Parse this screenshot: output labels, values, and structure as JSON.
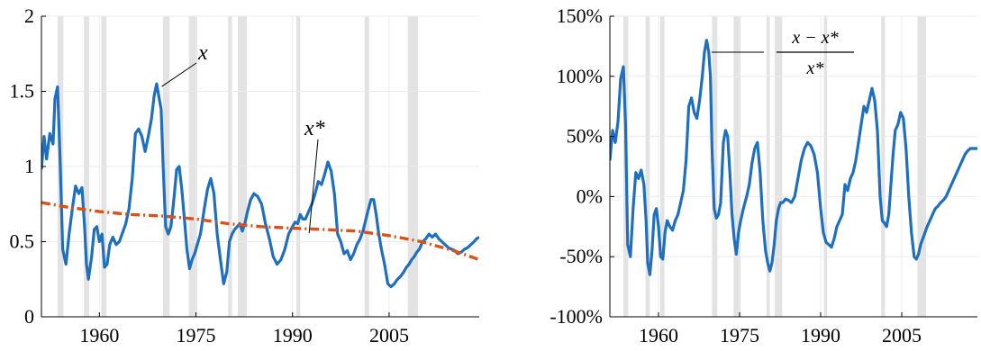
{
  "colors": {
    "x_line": "#1f6fbf",
    "xstar_line": "#d95319",
    "gap_line": "#1f6fbf",
    "recession": "#e3e3e3",
    "grid": "#ebebeb",
    "axis": "#000000"
  },
  "chart_data": [
    {
      "type": "line",
      "title": "",
      "xlabel": "",
      "ylabel": "",
      "xlim": [
        1951,
        2019
      ],
      "ylim": [
        0,
        2
      ],
      "xticks": [
        1960,
        1975,
        1990,
        2005
      ],
      "xtick_labels": [
        "1960",
        "1975",
        "1990",
        "2005"
      ],
      "yticks": [
        0,
        0.5,
        1,
        1.5,
        2
      ],
      "ytick_labels": [
        "0",
        "0.5",
        "1",
        "1.5",
        "2"
      ],
      "grid": true,
      "recession_bands": [
        [
          1953.5,
          1954.4
        ],
        [
          1957.6,
          1958.4
        ],
        [
          1960.3,
          1961.1
        ],
        [
          1969.9,
          1970.9
        ],
        [
          1973.9,
          1975.2
        ],
        [
          1980.0,
          1980.6
        ],
        [
          1981.5,
          1982.9
        ],
        [
          1990.6,
          1991.2
        ],
        [
          2001.2,
          2001.9
        ],
        [
          2007.9,
          2009.5
        ]
      ],
      "series": [
        {
          "name": "",
          "style": "solid",
          "x": [
            1951.0,
            1951.4,
            1951.8,
            1952.3,
            1952.8,
            1953.1,
            1953.5,
            1953.9,
            1954.3,
            1954.8,
            1955.3,
            1955.8,
            1956.3,
            1956.8,
            1957.3,
            1957.7,
            1958.0,
            1958.3,
            1958.8,
            1959.2,
            1959.6,
            1960.0,
            1960.4,
            1960.8,
            1961.2,
            1961.6,
            1962.1,
            1962.6,
            1963.1,
            1963.6,
            1964.1,
            1964.6,
            1965.1,
            1965.6,
            1966.1,
            1966.6,
            1967.1,
            1967.6,
            1968.1,
            1968.5,
            1968.9,
            1969.3,
            1969.6,
            1969.9,
            1970.3,
            1970.7,
            1971.1,
            1971.5,
            1972.0,
            1972.4,
            1972.8,
            1973.2,
            1973.6,
            1974.0,
            1974.4,
            1974.8,
            1975.2,
            1975.7,
            1976.3,
            1976.8,
            1977.3,
            1977.8,
            1978.3,
            1978.8,
            1979.3,
            1979.8,
            1980.2,
            1980.6,
            1981.0,
            1981.4,
            1981.8,
            1982.2,
            1982.6,
            1983.0,
            1983.5,
            1984.0,
            1984.6,
            1985.2,
            1985.8,
            1986.4,
            1987.0,
            1987.6,
            1988.2,
            1988.8,
            1989.4,
            1990.0,
            1990.4,
            1990.8,
            1991.2,
            1991.6,
            1992.0,
            1992.5,
            1993.0,
            1993.5,
            1994.0,
            1994.5,
            1995.0,
            1995.5,
            1996.0,
            1996.5,
            1997.0,
            1997.5,
            1998.0,
            1998.5,
            1999.0,
            1999.5,
            2000.0,
            2000.5,
            2001.0,
            2001.4,
            2001.8,
            2002.2,
            2002.6,
            2003.0,
            2003.4,
            2003.8,
            2004.3,
            2004.8,
            2005.3,
            2005.8,
            2006.3,
            2006.8,
            2007.3,
            2007.7,
            2008.1,
            2008.5,
            2008.9,
            2009.3,
            2009.7,
            2010.2,
            2010.7,
            2011.2,
            2011.7,
            2012.2,
            2012.7,
            2013.2,
            2013.7,
            2014.2,
            2014.7,
            2015.2,
            2015.7,
            2016.2,
            2016.7,
            2017.2,
            2017.7,
            2018.2,
            2018.6,
            2019.0
          ],
          "values": [
            0.98,
            1.2,
            1.05,
            1.22,
            1.15,
            1.45,
            1.53,
            1.05,
            0.45,
            0.35,
            0.55,
            0.72,
            0.87,
            0.82,
            0.86,
            0.6,
            0.35,
            0.25,
            0.4,
            0.58,
            0.6,
            0.5,
            0.55,
            0.33,
            0.35,
            0.48,
            0.53,
            0.48,
            0.5,
            0.56,
            0.62,
            0.72,
            0.92,
            1.22,
            1.25,
            1.2,
            1.1,
            1.2,
            1.32,
            1.47,
            1.55,
            1.45,
            1.38,
            1.0,
            0.6,
            0.55,
            0.6,
            0.75,
            0.98,
            1.0,
            0.85,
            0.65,
            0.45,
            0.32,
            0.38,
            0.42,
            0.48,
            0.55,
            0.72,
            0.85,
            0.92,
            0.82,
            0.55,
            0.38,
            0.22,
            0.3,
            0.5,
            0.55,
            0.58,
            0.6,
            0.62,
            0.57,
            0.62,
            0.7,
            0.78,
            0.82,
            0.8,
            0.75,
            0.62,
            0.52,
            0.4,
            0.35,
            0.38,
            0.45,
            0.55,
            0.6,
            0.63,
            0.62,
            0.68,
            0.65,
            0.65,
            0.7,
            0.75,
            0.82,
            0.9,
            0.88,
            0.95,
            1.03,
            0.97,
            0.82,
            0.55,
            0.5,
            0.42,
            0.44,
            0.38,
            0.42,
            0.48,
            0.52,
            0.58,
            0.65,
            0.72,
            0.78,
            0.78,
            0.68,
            0.55,
            0.45,
            0.35,
            0.22,
            0.2,
            0.22,
            0.25,
            0.27,
            0.3,
            0.33,
            0.35,
            0.38,
            0.4,
            0.43,
            0.45,
            0.5,
            0.52,
            0.55,
            0.53,
            0.55,
            0.52,
            0.5,
            0.48,
            0.46,
            0.45,
            0.44,
            0.42,
            0.43,
            0.45,
            0.46,
            0.48,
            0.5,
            0.52,
            0.53
          ]
        },
        {
          "name": "",
          "style": "dash-dot",
          "x": [
            1951,
            1955,
            1960,
            1965,
            1970,
            1975,
            1980,
            1985,
            1990,
            1995,
            2000,
            2005,
            2010,
            2015,
            2019
          ],
          "values": [
            0.76,
            0.73,
            0.7,
            0.68,
            0.67,
            0.65,
            0.62,
            0.6,
            0.59,
            0.58,
            0.57,
            0.54,
            0.5,
            0.44,
            0.38
          ]
        }
      ],
      "annotations": [
        {
          "text": "x",
          "target_x": 1969.4,
          "target_y": 1.52
        },
        {
          "text": "x*",
          "target_x": 1993.0,
          "target_y": 0.58
        }
      ]
    },
    {
      "type": "line",
      "title": "",
      "xlabel": "",
      "ylabel": "",
      "xlim": [
        1951,
        2019
      ],
      "ylim": [
        -100,
        150
      ],
      "xticks": [
        1960,
        1975,
        1990,
        2005
      ],
      "xtick_labels": [
        "1960",
        "1975",
        "1990",
        "2005"
      ],
      "yticks": [
        -100,
        -50,
        0,
        50,
        100,
        150
      ],
      "ytick_labels": [
        "-100%",
        "-50%",
        "0%",
        "50%",
        "100%",
        "150%"
      ],
      "grid": true,
      "recession_bands": [
        [
          1953.5,
          1954.4
        ],
        [
          1957.6,
          1958.4
        ],
        [
          1960.3,
          1961.1
        ],
        [
          1969.9,
          1970.9
        ],
        [
          1973.9,
          1975.2
        ],
        [
          1980.0,
          1980.6
        ],
        [
          1981.5,
          1982.9
        ],
        [
          1990.6,
          1991.2
        ],
        [
          2001.2,
          2001.9
        ],
        [
          2007.9,
          2009.5
        ]
      ],
      "series": [
        {
          "name": "",
          "style": "solid",
          "x": [
            1951.0,
            1951.5,
            1952.0,
            1952.5,
            1953.0,
            1953.5,
            1953.9,
            1954.3,
            1954.8,
            1955.3,
            1955.8,
            1956.3,
            1956.8,
            1957.3,
            1957.7,
            1958.0,
            1958.4,
            1958.8,
            1959.2,
            1959.6,
            1960.0,
            1960.4,
            1960.8,
            1961.2,
            1961.6,
            1962.1,
            1962.6,
            1963.1,
            1963.6,
            1964.1,
            1964.6,
            1965.1,
            1965.6,
            1966.1,
            1966.6,
            1967.1,
            1967.6,
            1968.1,
            1968.5,
            1968.9,
            1969.3,
            1969.6,
            1969.9,
            1970.3,
            1970.7,
            1971.1,
            1971.5,
            1972.0,
            1972.4,
            1972.8,
            1973.2,
            1973.6,
            1974.0,
            1974.4,
            1974.8,
            1975.2,
            1975.7,
            1976.3,
            1976.8,
            1977.3,
            1977.8,
            1978.3,
            1978.8,
            1979.3,
            1979.8,
            1980.2,
            1980.6,
            1981.0,
            1981.4,
            1981.8,
            1982.2,
            1982.6,
            1983.0,
            1983.5,
            1984.0,
            1984.6,
            1985.2,
            1985.8,
            1986.4,
            1987.0,
            1987.6,
            1988.2,
            1988.8,
            1989.4,
            1990.0,
            1990.5,
            1991.0,
            1991.5,
            1992.0,
            1992.5,
            1993.0,
            1993.5,
            1994.0,
            1994.5,
            1995.0,
            1995.5,
            1996.0,
            1996.5,
            1997.0,
            1997.5,
            1998.0,
            1998.5,
            1999.0,
            1999.5,
            2000.0,
            2000.5,
            2001.0,
            2001.4,
            2001.8,
            2002.2,
            2002.6,
            2003.0,
            2003.4,
            2003.8,
            2004.3,
            2004.8,
            2005.3,
            2005.8,
            2006.3,
            2006.8,
            2007.3,
            2007.7,
            2008.1,
            2008.5,
            2008.9,
            2009.3,
            2009.7,
            2010.2,
            2010.7,
            2011.2,
            2011.7,
            2012.2,
            2012.7,
            2013.2,
            2013.7,
            2014.2,
            2014.7,
            2015.2,
            2015.7,
            2016.2,
            2016.7,
            2017.2,
            2017.7,
            2018.2,
            2018.6,
            2019.0
          ],
          "values": [
            30,
            55,
            45,
            62,
            98,
            108,
            60,
            -40,
            -50,
            -10,
            20,
            15,
            22,
            10,
            -20,
            -55,
            -65,
            -45,
            -15,
            -10,
            -25,
            -50,
            -52,
            -30,
            -20,
            -25,
            -28,
            -20,
            -15,
            -5,
            5,
            30,
            75,
            82,
            70,
            65,
            80,
            100,
            120,
            130,
            120,
            100,
            40,
            -10,
            -18,
            -15,
            -5,
            45,
            55,
            50,
            20,
            -15,
            -35,
            -48,
            -30,
            -20,
            -10,
            0,
            10,
            28,
            40,
            45,
            20,
            -20,
            -45,
            -55,
            -62,
            -55,
            -40,
            -20,
            -10,
            -5,
            -5,
            -2,
            -3,
            -5,
            0,
            15,
            30,
            40,
            45,
            42,
            35,
            20,
            -10,
            -30,
            -38,
            -40,
            -42,
            -35,
            -25,
            -20,
            -15,
            10,
            5,
            15,
            20,
            30,
            45,
            60,
            75,
            70,
            80,
            90,
            80,
            55,
            0,
            -20,
            -22,
            -25,
            -15,
            10,
            35,
            55,
            60,
            70,
            65,
            40,
            0,
            -30,
            -50,
            -52,
            -48,
            -40,
            -35,
            -30,
            -25,
            -20,
            -15,
            -10,
            -8,
            -5,
            -3,
            0,
            5,
            10,
            15,
            20,
            25,
            30,
            35,
            38,
            40,
            40,
            40,
            40
          ]
        }
      ],
      "annotations": [
        {
          "text_num": "x − x*",
          "text_den": "x*",
          "target_x": 1969.8,
          "target_y": 120
        }
      ]
    }
  ]
}
